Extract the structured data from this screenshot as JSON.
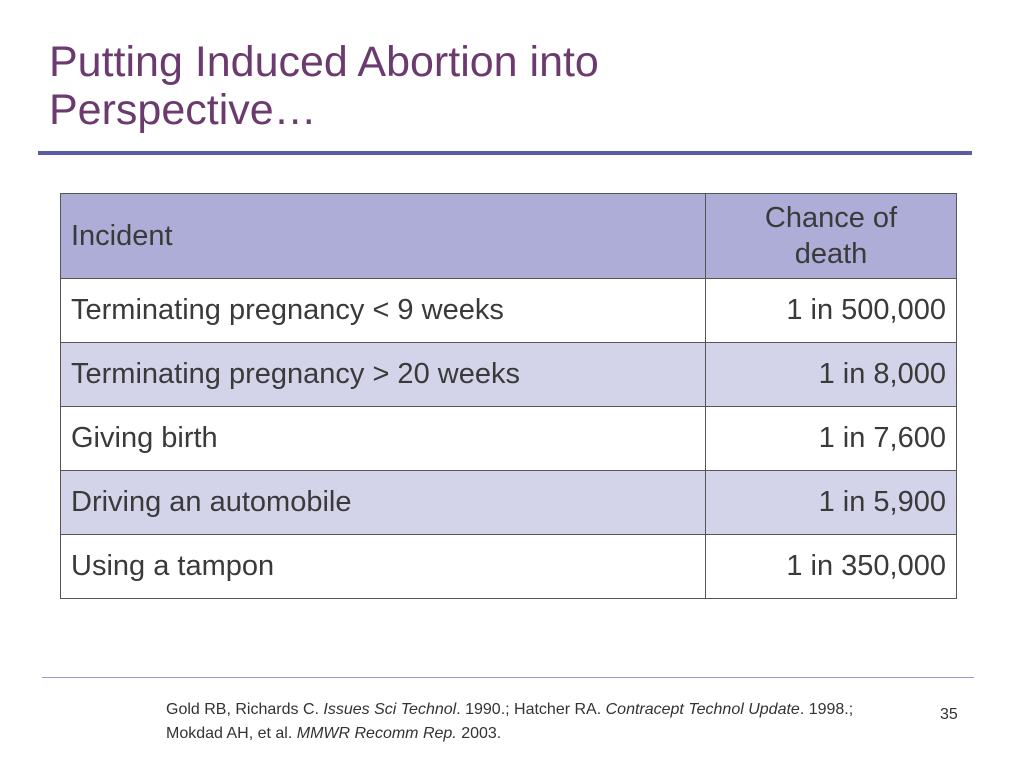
{
  "slide": {
    "title_line1": "Putting Induced Abortion into",
    "title_line2": "Perspective…",
    "page_number": "35"
  },
  "table": {
    "headers": {
      "incident": "Incident",
      "chance_line1": "Chance of",
      "chance_line2": "death"
    },
    "rows": [
      {
        "incident": "Terminating pregnancy < 9 weeks",
        "chance": "1 in 500,000"
      },
      {
        "incident": "Terminating pregnancy > 20 weeks",
        "chance": "1 in 8,000"
      },
      {
        "incident": "Giving birth",
        "chance": "1 in 7,600"
      },
      {
        "incident": "Driving an automobile",
        "chance": "1 in 5,900"
      },
      {
        "incident": "Using a tampon",
        "chance": "1 in 350,000"
      }
    ]
  },
  "citation": {
    "part1": "Gold RB, Richards C. ",
    "journal1": "Issues Sci Technol",
    "part2": ". 1990.; Hatcher RA. ",
    "journal2": "Contracept Technol Update",
    "part3": ". 1998.; Mokdad AH, et al. ",
    "journal3": "MMWR Recomm Rep.",
    "part4": " 2003."
  },
  "colors": {
    "title": "#6b3a6e",
    "rule": "#5c5ca6",
    "header_fill": "#adadd8",
    "alt_row_fill": "#d3d3ea"
  }
}
